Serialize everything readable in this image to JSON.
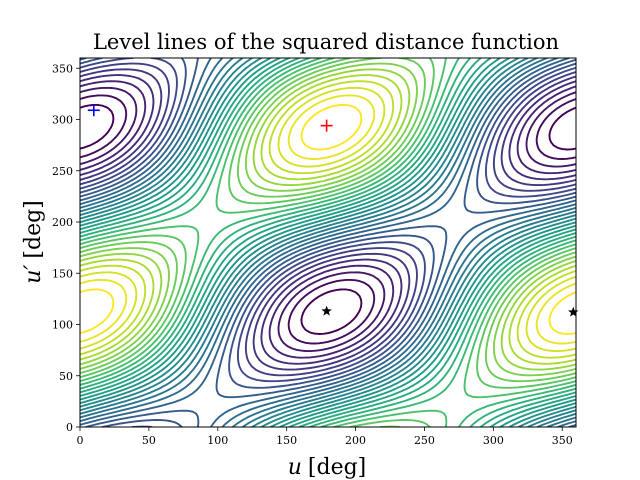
{
  "chart_data": {
    "type": "contour",
    "title": "Level lines of the squared distance function",
    "xlabel": "u [deg]",
    "ylabel": "u′ [deg]",
    "xlabel_var": "u",
    "ylabel_var": "u′",
    "label_unit": "[deg]",
    "xlim": [
      0,
      360
    ],
    "ylim": [
      0,
      360
    ],
    "xticks": [
      "0",
      "50",
      "100",
      "150",
      "200",
      "250",
      "300",
      "350"
    ],
    "yticks": [
      "0",
      "50",
      "100",
      "150",
      "200",
      "250",
      "300",
      "350"
    ],
    "grid": false,
    "colormap": "viridis",
    "levels": 32,
    "markers": [
      {
        "kind": "plus",
        "x": 10,
        "y": 309,
        "color": "#0000ff"
      },
      {
        "kind": "plus",
        "x": 179,
        "y": 294,
        "color": "#ff0000"
      },
      {
        "kind": "star",
        "x": 179,
        "y": 113,
        "color": "#000000"
      },
      {
        "kind": "star",
        "x": 358,
        "y": 112,
        "color": "#000000"
      }
    ]
  }
}
